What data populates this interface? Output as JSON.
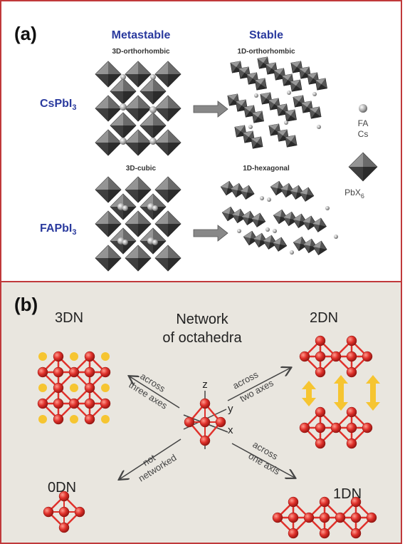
{
  "panel_a": {
    "tag": "(a)",
    "heading_metastable": "Metastable",
    "heading_stable": "Stable",
    "label_3d_ortho": "3D-orthorhombic",
    "label_1d_ortho": "1D-orthorhombic",
    "label_3d_cubic": "3D-cubic",
    "label_1d_hex": "1D-hexagonal",
    "compound_1": "CsPbI",
    "compound_1_sub": "3",
    "compound_2": "FAPbI",
    "compound_2_sub": "3",
    "legend_fa": "FA",
    "legend_cs": "Cs",
    "legend_pbx": "PbX",
    "legend_pbx_sub": "6"
  },
  "panel_b": {
    "tag": "(b)",
    "label_3dn": "3DN",
    "label_2dn": "2DN",
    "label_1dn": "1DN",
    "label_0dn": "0DN",
    "title_line1": "Network",
    "title_line2": "of octahedra",
    "arrow_3d_l1": "across",
    "arrow_3d_l2": "three axes",
    "arrow_2d_l1": "across",
    "arrow_2d_l2": "two axes",
    "arrow_1d_l1": "across",
    "arrow_1d_l2": "one axis",
    "arrow_0d_l1": "not",
    "arrow_0d_l2": "networked",
    "axis_z": "z",
    "axis_y": "y",
    "axis_x": "x"
  },
  "colors": {
    "frame_border": "#c0393b",
    "panel_b_bg": "#e9e6df",
    "heading_blue": "#2a3a9e",
    "octahedron_red": "#e0312b",
    "atom_red": "#d42a22",
    "cation_yellow": "#f6c531",
    "arrow_yellow": "#f6c531"
  }
}
